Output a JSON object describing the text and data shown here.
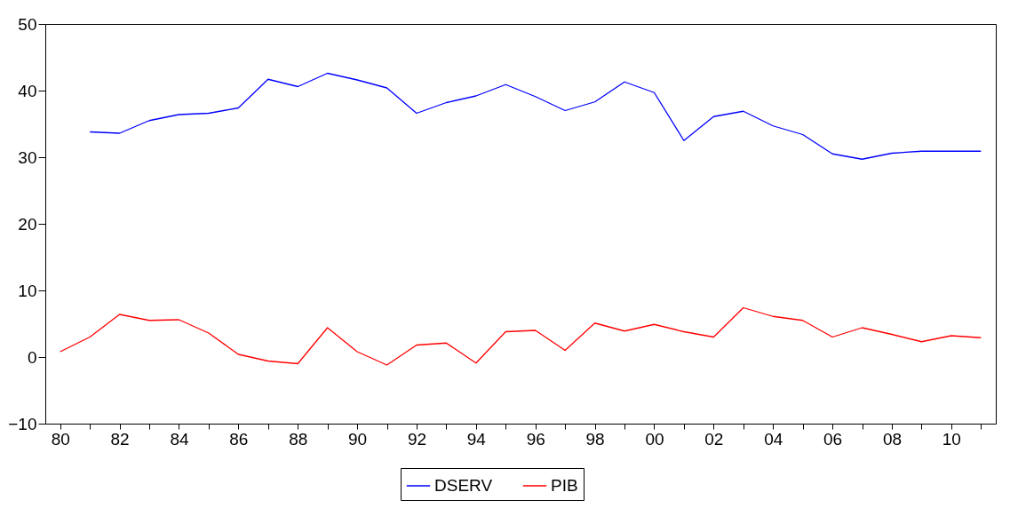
{
  "chart_data": {
    "type": "line",
    "categories": [
      "80",
      null,
      "82",
      null,
      "84",
      null,
      "86",
      null,
      "88",
      null,
      "90",
      null,
      "92",
      null,
      "94",
      null,
      "96",
      null,
      "98",
      null,
      "00",
      null,
      "02",
      null,
      "04",
      null,
      "06",
      null,
      "08",
      null,
      "10",
      null
    ],
    "series": [
      {
        "name": "DSERV",
        "color": "#0000ff",
        "values": [
          null,
          33.8,
          33.6,
          35.5,
          36.4,
          36.6,
          37.4,
          41.7,
          40.6,
          42.6,
          41.6,
          40.4,
          36.6,
          38.2,
          39.2,
          40.9,
          39.1,
          37.0,
          38.3,
          41.3,
          39.7,
          32.5,
          36.1,
          36.9,
          34.7,
          33.4,
          30.5,
          29.7,
          30.6,
          30.9,
          30.9,
          30.9
        ]
      },
      {
        "name": "PIB",
        "color": "#ff0000",
        "values": [
          0.8,
          3.0,
          6.4,
          5.5,
          5.6,
          3.6,
          0.4,
          -0.6,
          -1.0,
          4.4,
          0.8,
          -1.2,
          1.8,
          2.1,
          -0.9,
          3.8,
          4.0,
          1.0,
          5.1,
          3.9,
          4.9,
          3.8,
          3.0,
          7.4,
          6.1,
          5.5,
          3.0,
          4.4,
          3.4,
          2.3,
          3.2,
          2.9
        ]
      }
    ],
    "ylim": [
      -10,
      50
    ],
    "yticks": [
      -10,
      0,
      10,
      20,
      30,
      40,
      50
    ],
    "grid": false,
    "legend": "bottom",
    "marker": "none",
    "line_style": "solid"
  }
}
